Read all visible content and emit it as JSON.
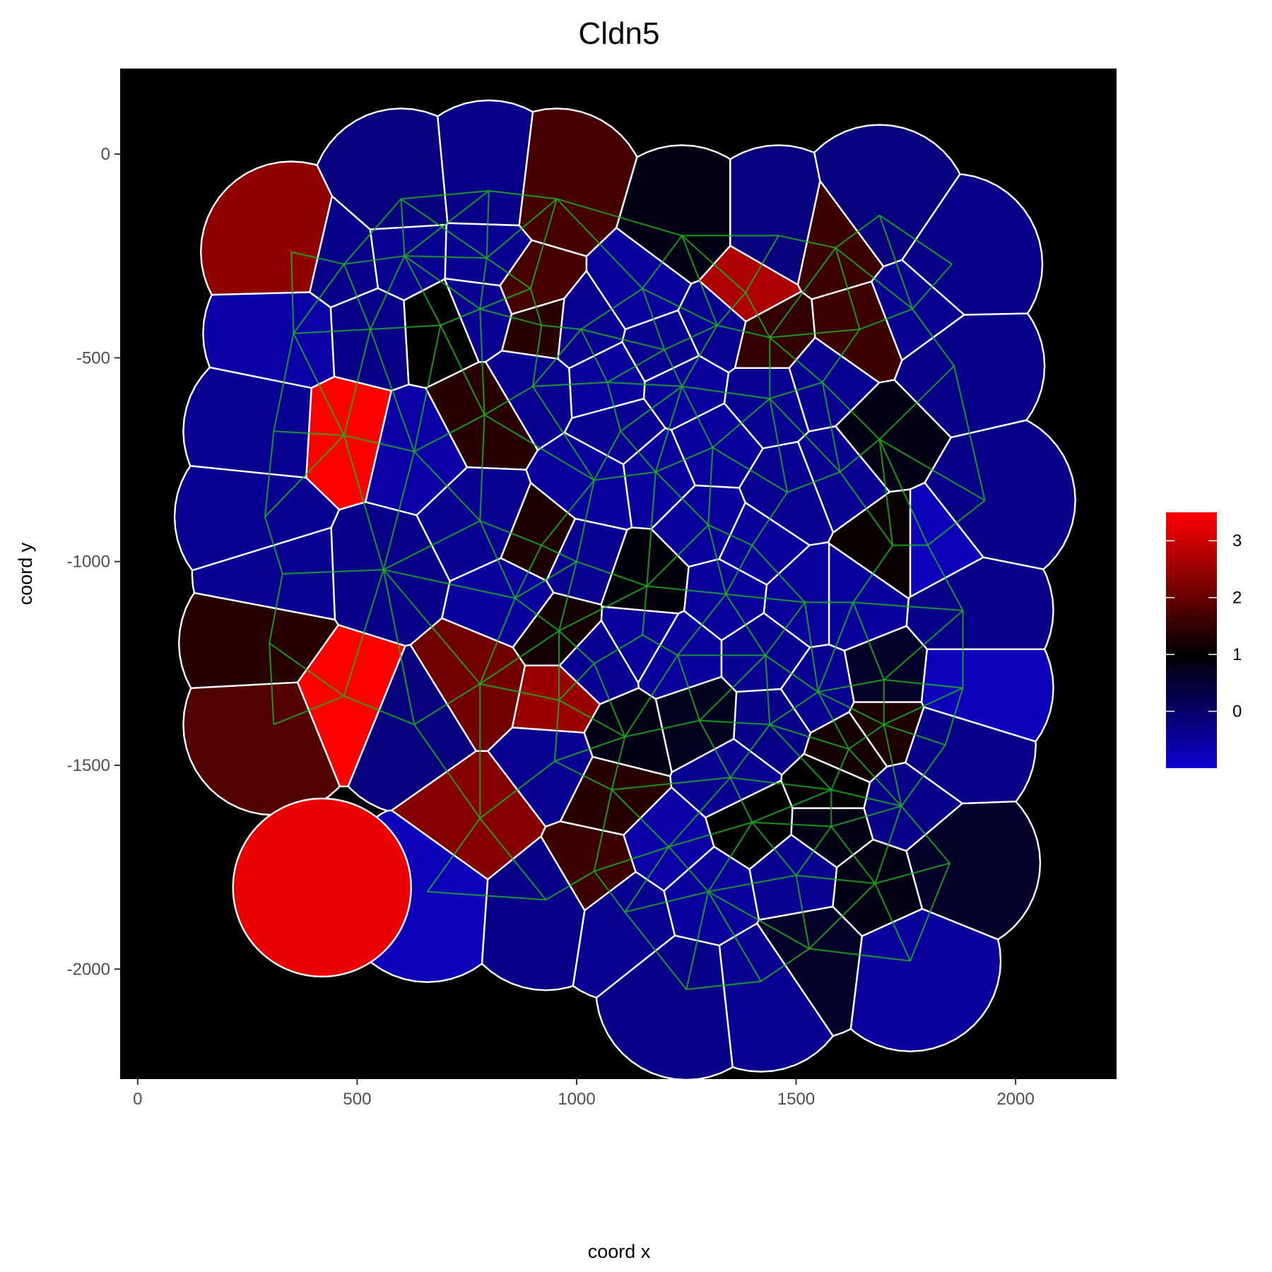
{
  "chart_data": {
    "type": "spatial-voronoi",
    "title": "Cldn5",
    "xlabel": "coord x",
    "ylabel": "coord y",
    "xlim": [
      -40,
      2230
    ],
    "ylim": [
      -2270,
      210
    ],
    "x_ticks": [
      0,
      500,
      1000,
      1500,
      2000
    ],
    "y_ticks": [
      0,
      -500,
      -1000,
      -1500,
      -2000
    ],
    "x_tick_labels": [
      "0",
      "500",
      "1000",
      "1500",
      "2000"
    ],
    "y_tick_labels": [
      "0",
      "-500",
      "-1000",
      "-1500",
      "-2000"
    ],
    "panel_background": "#000000",
    "cell_border_color": "#ffffff",
    "network_color": "#22b022",
    "legend": {
      "placement": "right",
      "min": -1.0,
      "max": 3.5,
      "tick_values": [
        0,
        1,
        2,
        3
      ],
      "tick_labels": [
        "0",
        "1",
        "2",
        "3"
      ],
      "gradient": [
        {
          "value": -1.0,
          "color": "#0d00d0"
        },
        {
          "value": 1.0,
          "color": "#000000"
        },
        {
          "value": 3.5,
          "color": "#ff0000"
        }
      ]
    },
    "cells": [
      {
        "x": 350,
        "y": -240,
        "value": 2.4
      },
      {
        "x": 470,
        "y": -270,
        "value": -0.3
      },
      {
        "x": 600,
        "y": -110,
        "value": -0.2
      },
      {
        "x": 800,
        "y": -90,
        "value": -0.3
      },
      {
        "x": 955,
        "y": -110,
        "value": 1.7
      },
      {
        "x": 1240,
        "y": -200,
        "value": 0.8
      },
      {
        "x": 1460,
        "y": -200,
        "value": -0.2
      },
      {
        "x": 1690,
        "y": -150,
        "value": -0.2
      },
      {
        "x": 1590,
        "y": -230,
        "value": 1.6
      },
      {
        "x": 1855,
        "y": -270,
        "value": -0.3
      },
      {
        "x": 355,
        "y": -440,
        "value": -0.6
      },
      {
        "x": 530,
        "y": -430,
        "value": -0.3
      },
      {
        "x": 690,
        "y": -420,
        "value": 1.0
      },
      {
        "x": 608,
        "y": -250,
        "value": -0.4
      },
      {
        "x": 795,
        "y": -255,
        "value": -0.4
      },
      {
        "x": 895,
        "y": -330,
        "value": 1.7
      },
      {
        "x": 920,
        "y": -420,
        "value": 1.4
      },
      {
        "x": 1150,
        "y": -330,
        "value": -0.5
      },
      {
        "x": 1385,
        "y": -340,
        "value": 2.7
      },
      {
        "x": 1440,
        "y": -450,
        "value": 1.5
      },
      {
        "x": 1645,
        "y": -430,
        "value": 1.6
      },
      {
        "x": 1765,
        "y": -380,
        "value": -0.4
      },
      {
        "x": 1860,
        "y": -520,
        "value": -0.3
      },
      {
        "x": 310,
        "y": -680,
        "value": -0.4
      },
      {
        "x": 470,
        "y": -690,
        "value": 3.5
      },
      {
        "x": 630,
        "y": -730,
        "value": -0.6
      },
      {
        "x": 790,
        "y": -640,
        "value": 1.4
      },
      {
        "x": 900,
        "y": -570,
        "value": -0.4
      },
      {
        "x": 1070,
        "y": -560,
        "value": -0.5
      },
      {
        "x": 1240,
        "y": -570,
        "value": -0.5
      },
      {
        "x": 1440,
        "y": -600,
        "value": -0.4
      },
      {
        "x": 1690,
        "y": -700,
        "value": 0.8
      },
      {
        "x": 1930,
        "y": -850,
        "value": -0.3
      },
      {
        "x": 290,
        "y": -890,
        "value": -0.4
      },
      {
        "x": 330,
        "y": -1030,
        "value": -0.4
      },
      {
        "x": 560,
        "y": -1020,
        "value": -0.3
      },
      {
        "x": 780,
        "y": -900,
        "value": -0.4
      },
      {
        "x": 920,
        "y": -960,
        "value": 1.3
      },
      {
        "x": 1040,
        "y": -800,
        "value": -0.5
      },
      {
        "x": 1180,
        "y": -780,
        "value": -0.5
      },
      {
        "x": 1300,
        "y": -910,
        "value": -0.5
      },
      {
        "x": 1480,
        "y": -830,
        "value": -0.4
      },
      {
        "x": 1720,
        "y": -960,
        "value": 1.1
      },
      {
        "x": 1800,
        "y": -960,
        "value": -0.8
      },
      {
        "x": 300,
        "y": -1200,
        "value": 1.4
      },
      {
        "x": 470,
        "y": -1330,
        "value": 3.5
      },
      {
        "x": 310,
        "y": -1400,
        "value": 1.8
      },
      {
        "x": 630,
        "y": -1400,
        "value": -0.2
      },
      {
        "x": 780,
        "y": -1300,
        "value": 2.1
      },
      {
        "x": 960,
        "y": -1170,
        "value": 1.2
      },
      {
        "x": 960,
        "y": -1340,
        "value": 2.5
      },
      {
        "x": 1160,
        "y": -1060,
        "value": 0.9
      },
      {
        "x": 1230,
        "y": -1230,
        "value": -0.5
      },
      {
        "x": 1430,
        "y": -1230,
        "value": -0.4
      },
      {
        "x": 1630,
        "y": -1100,
        "value": -0.5
      },
      {
        "x": 1880,
        "y": -1120,
        "value": -0.3
      },
      {
        "x": 1880,
        "y": -1310,
        "value": -0.8
      },
      {
        "x": 1700,
        "y": -1290,
        "value": 0.6
      },
      {
        "x": 1840,
        "y": -1450,
        "value": -0.3
      },
      {
        "x": 1620,
        "y": -1460,
        "value": 1.2
      },
      {
        "x": 1440,
        "y": -1400,
        "value": -0.3
      },
      {
        "x": 1280,
        "y": -1390,
        "value": 0.7
      },
      {
        "x": 1110,
        "y": -1430,
        "value": 0.8
      },
      {
        "x": 950,
        "y": -1490,
        "value": -0.4
      },
      {
        "x": 1080,
        "y": -1560,
        "value": 1.4
      },
      {
        "x": 780,
        "y": -1630,
        "value": 2.3
      },
      {
        "x": 660,
        "y": -1810,
        "value": -0.8
      },
      {
        "x": 930,
        "y": -1830,
        "value": -0.3
      },
      {
        "x": 1040,
        "y": -1760,
        "value": 1.6
      },
      {
        "x": 1210,
        "y": -1700,
        "value": -0.6
      },
      {
        "x": 1400,
        "y": -1640,
        "value": 1.0
      },
      {
        "x": 1580,
        "y": -1650,
        "value": 0.8
      },
      {
        "x": 1740,
        "y": -1600,
        "value": -0.3
      },
      {
        "x": 1850,
        "y": -1740,
        "value": 0.6
      },
      {
        "x": 1760,
        "y": -1980,
        "value": -0.5
      },
      {
        "x": 1530,
        "y": -1950,
        "value": 0.6
      },
      {
        "x": 1420,
        "y": -2030,
        "value": -0.4
      },
      {
        "x": 1250,
        "y": -2050,
        "value": -0.3
      },
      {
        "x": 1110,
        "y": -1860,
        "value": -0.4
      },
      {
        "x": 1300,
        "y": -1810,
        "value": -0.5
      },
      {
        "x": 1500,
        "y": -1770,
        "value": -0.4
      },
      {
        "x": 1680,
        "y": -1790,
        "value": 0.8
      },
      {
        "x": 1150,
        "y": -1180,
        "value": -0.5
      },
      {
        "x": 1340,
        "y": -1080,
        "value": -0.5
      },
      {
        "x": 1520,
        "y": -1100,
        "value": -0.5
      },
      {
        "x": 1200,
        "y": -480,
        "value": -0.4
      },
      {
        "x": 1320,
        "y": -420,
        "value": -0.4
      },
      {
        "x": 1010,
        "y": -430,
        "value": -0.4
      },
      {
        "x": 780,
        "y": -380,
        "value": -0.4
      },
      {
        "x": 1100,
        "y": -680,
        "value": -0.4
      },
      {
        "x": 1310,
        "y": -720,
        "value": -0.5
      },
      {
        "x": 1560,
        "y": -560,
        "value": -0.4
      },
      {
        "x": 1600,
        "y": -780,
        "value": -0.4
      },
      {
        "x": 1400,
        "y": -960,
        "value": -0.5
      },
      {
        "x": 860,
        "y": -1090,
        "value": -0.5
      },
      {
        "x": 1000,
        "y": -1000,
        "value": -0.4
      },
      {
        "x": 1040,
        "y": -1250,
        "value": -0.4
      },
      {
        "x": 1550,
        "y": -1320,
        "value": -0.4
      },
      {
        "x": 1350,
        "y": -1530,
        "value": -0.4
      },
      {
        "x": 1580,
        "y": -1560,
        "value": 1.0
      },
      {
        "x": 1700,
        "y": -1400,
        "value": 1.3
      },
      {
        "x": 420,
        "y": -1800,
        "value": 3.3,
        "isolated": true
      }
    ]
  }
}
